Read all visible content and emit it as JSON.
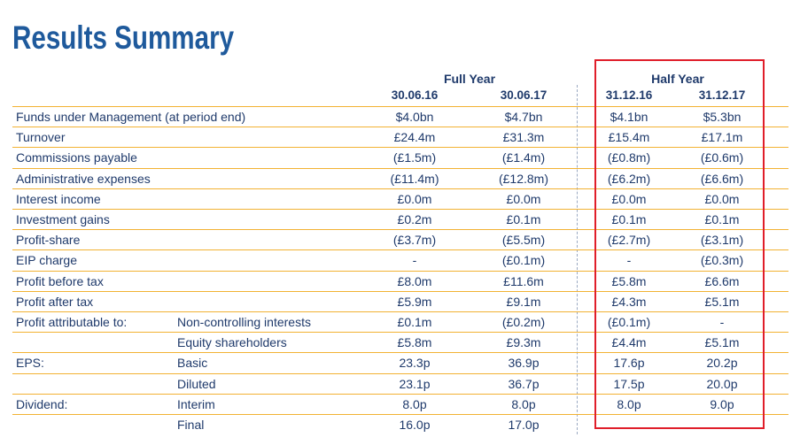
{
  "title": "Results Summary",
  "groups": {
    "full_year": "Full Year",
    "half_year": "Half Year"
  },
  "dates": [
    "30.06.16",
    "30.06.17",
    "31.12.16",
    "31.12.17"
  ],
  "rows": [
    {
      "label": "Funds under Management (at period end)",
      "sub": "",
      "values": [
        "$4.0bn",
        "$4.7bn",
        "$4.1bn",
        "$5.3bn"
      ]
    },
    {
      "label": "Turnover",
      "sub": "",
      "values": [
        "£24.4m",
        "£31.3m",
        "£15.4m",
        "£17.1m"
      ]
    },
    {
      "label": "Commissions payable",
      "sub": "",
      "values": [
        "(£1.5m)",
        "(£1.4m)",
        "(£0.8m)",
        "(£0.6m)"
      ]
    },
    {
      "label": "Administrative expenses",
      "sub": "",
      "values": [
        "(£11.4m)",
        "(£12.8m)",
        "(£6.2m)",
        "(£6.6m)"
      ]
    },
    {
      "label": "Interest income",
      "sub": "",
      "values": [
        "£0.0m",
        "£0.0m",
        "£0.0m",
        "£0.0m"
      ]
    },
    {
      "label": "Investment gains",
      "sub": "",
      "values": [
        "£0.2m",
        "£0.1m",
        "£0.1m",
        "£0.1m"
      ]
    },
    {
      "label": "Profit-share",
      "sub": "",
      "values": [
        "(£3.7m)",
        "(£5.5m)",
        "(£2.7m)",
        "(£3.1m)"
      ]
    },
    {
      "label": "EIP charge",
      "sub": "",
      "values": [
        "-",
        "(£0.1m)",
        "-",
        "(£0.3m)"
      ]
    },
    {
      "label": "Profit before tax",
      "sub": "",
      "values": [
        "£8.0m",
        "£11.6m",
        "£5.8m",
        "£6.6m"
      ]
    },
    {
      "label": "Profit after tax",
      "sub": "",
      "values": [
        "£5.9m",
        "£9.1m",
        "£4.3m",
        "£5.1m"
      ]
    },
    {
      "label": "Profit attributable to:",
      "sub": "Non-controlling interests",
      "values": [
        "£0.1m",
        "(£0.2m)",
        "(£0.1m)",
        "-"
      ]
    },
    {
      "label": "",
      "sub": "Equity shareholders",
      "values": [
        "£5.8m",
        "£9.3m",
        "£4.4m",
        "£5.1m"
      ]
    },
    {
      "label": "EPS:",
      "sub": "Basic",
      "values": [
        "23.3p",
        "36.9p",
        "17.6p",
        "20.2p"
      ]
    },
    {
      "label": "",
      "sub": "Diluted",
      "values": [
        "23.1p",
        "36.7p",
        "17.5p",
        "20.0p"
      ]
    },
    {
      "label": "Dividend:",
      "sub": "Interim",
      "values": [
        "8.0p",
        "8.0p",
        "8.0p",
        "9.0p"
      ]
    },
    {
      "label": "",
      "sub": "Final",
      "values": [
        "16.0p",
        "17.0p",
        "",
        ""
      ]
    }
  ]
}
